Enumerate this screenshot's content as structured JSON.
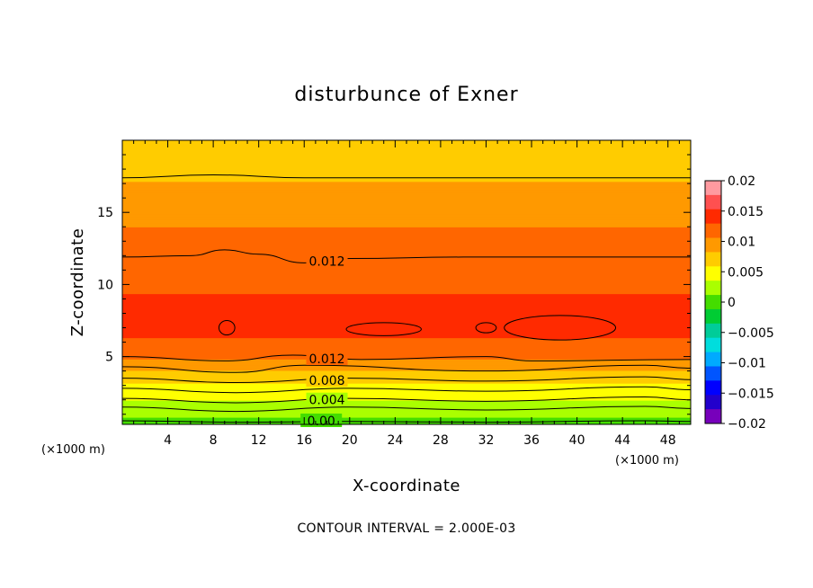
{
  "chart_data": {
    "type": "heatmap",
    "title": "disturbunce of Exner",
    "xlabel": "X-coordinate",
    "ylabel": "Z-coordinate",
    "x_unit": "(×1000 m)",
    "y_unit": "(×1000 m)",
    "xlim": [
      0,
      50
    ],
    "ylim": [
      0.3,
      20
    ],
    "x_ticks": [
      4,
      8,
      12,
      16,
      20,
      24,
      28,
      32,
      36,
      40,
      44,
      48
    ],
    "y_ticks": [
      5,
      10,
      15
    ],
    "footer": "CONTOUR INTERVAL = 2.000E-03",
    "contour_interval": 0.002,
    "colorbar": {
      "ticks": [
        "0.02",
        "0.015",
        "0.01",
        "0.005",
        "0",
        "−0.005",
        "−0.01",
        "−0.015",
        "−0.02"
      ],
      "range": [
        -0.02,
        0.02
      ],
      "colors": [
        "#ff9aa0",
        "#ff5050",
        "#ff2a00",
        "#ff6600",
        "#ff9900",
        "#ffcc00",
        "#ffff00",
        "#aaff00",
        "#44dd00",
        "#00cc33",
        "#00cc99",
        "#00dddd",
        "#00aaff",
        "#0055ff",
        "#0000ff",
        "#2200cc",
        "#7700bb"
      ]
    },
    "contour_labels": [
      "0.012",
      "0.012",
      "0.008",
      "0.004",
      "0.00"
    ],
    "profile": {
      "z": [
        0.3,
        0.5,
        1.0,
        1.5,
        2.0,
        2.5,
        3.0,
        3.5,
        4.0,
        4.5,
        5.0,
        5.5,
        6.0,
        7.0,
        8.0,
        9.0,
        10.0,
        11.0,
        11.9,
        13.0,
        14.0,
        14.6,
        15.5,
        16.5,
        17.4,
        18.5,
        19.8
      ],
      "value": [
        0.0,
        0.0005,
        0.0015,
        0.0025,
        0.0035,
        0.0045,
        0.0055,
        0.0065,
        0.008,
        0.0095,
        0.0112,
        0.0122,
        0.0128,
        0.0132,
        0.0133,
        0.0131,
        0.0127,
        0.0124,
        0.012,
        0.0113,
        0.0106,
        0.01,
        0.0092,
        0.0087,
        0.008,
        0.0074,
        0.0068
      ]
    },
    "contour_lines": [
      {
        "level": 0.0,
        "z_at_x": [
          [
            0,
            0.55
          ],
          [
            10,
            0.45
          ],
          [
            20,
            0.5
          ],
          [
            32,
            0.45
          ],
          [
            46,
            0.55
          ],
          [
            50,
            0.5
          ]
        ]
      },
      {
        "level": 0.002,
        "z_at_x": [
          [
            0,
            1.5
          ],
          [
            10,
            1.2
          ],
          [
            20,
            1.5
          ],
          [
            32,
            1.3
          ],
          [
            46,
            1.55
          ],
          [
            50,
            1.4
          ]
        ]
      },
      {
        "level": 0.004,
        "z_at_x": [
          [
            0,
            2.1
          ],
          [
            10,
            1.8
          ],
          [
            20,
            2.1
          ],
          [
            32,
            1.9
          ],
          [
            46,
            2.2
          ],
          [
            50,
            2.0
          ]
        ]
      },
      {
        "level": 0.006,
        "z_at_x": [
          [
            0,
            2.8
          ],
          [
            10,
            2.5
          ],
          [
            20,
            2.8
          ],
          [
            32,
            2.6
          ],
          [
            46,
            2.9
          ],
          [
            50,
            2.7
          ]
        ]
      },
      {
        "level": 0.008,
        "z_at_x": [
          [
            0,
            3.5
          ],
          [
            10,
            3.2
          ],
          [
            20,
            3.5
          ],
          [
            32,
            3.3
          ],
          [
            46,
            3.6
          ],
          [
            50,
            3.4
          ]
        ]
      },
      {
        "level": 0.01,
        "z_at_x": [
          [
            0,
            4.3
          ],
          [
            10,
            3.9
          ],
          [
            16,
            4.4
          ],
          [
            32,
            4.0
          ],
          [
            46,
            4.4
          ],
          [
            50,
            4.2
          ]
        ]
      },
      {
        "level": 0.012,
        "z_at_x": [
          [
            0,
            5.0
          ],
          [
            9,
            4.7
          ],
          [
            15,
            5.1
          ],
          [
            21,
            4.8
          ],
          [
            32,
            5.0
          ],
          [
            36,
            4.7
          ],
          [
            50,
            4.8
          ]
        ]
      },
      {
        "level": 0.012,
        "z_at_x": [
          [
            0,
            11.9
          ],
          [
            6,
            12.0
          ],
          [
            9,
            12.4
          ],
          [
            12,
            12.1
          ],
          [
            16,
            11.5
          ],
          [
            20,
            11.8
          ],
          [
            30,
            11.9
          ],
          [
            50,
            11.9
          ]
        ]
      },
      {
        "level": 0.008,
        "z_at_x": [
          [
            0,
            17.4
          ],
          [
            8,
            17.6
          ],
          [
            16,
            17.4
          ],
          [
            50,
            17.4
          ]
        ]
      }
    ],
    "closed_contours": [
      {
        "level": 0.014,
        "center": [
          9.2,
          7.0
        ],
        "radius": [
          0.7,
          0.5
        ]
      },
      {
        "level": 0.014,
        "center": [
          23.0,
          6.9
        ],
        "radius": [
          3.3,
          0.45
        ]
      },
      {
        "level": 0.014,
        "center": [
          32.0,
          7.0
        ],
        "radius": [
          0.9,
          0.35
        ]
      },
      {
        "level": 0.014,
        "center": [
          38.5,
          7.0
        ],
        "radius": [
          4.9,
          0.85
        ]
      }
    ]
  }
}
